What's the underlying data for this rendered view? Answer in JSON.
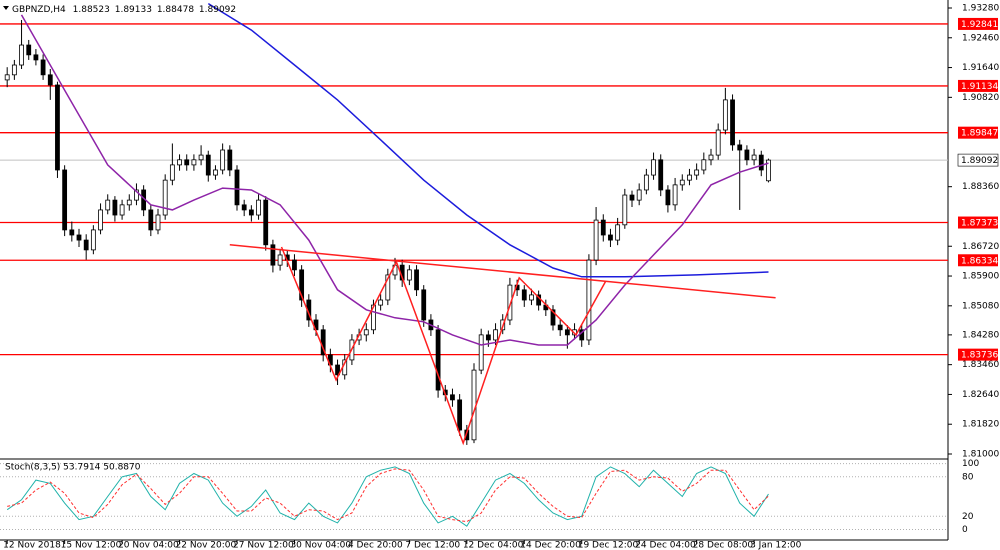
{
  "chart_data": {
    "type": "candlestick",
    "symbol": "GBPNZD,H4",
    "color_up": "#ffffff",
    "color_down": "#000000",
    "ohlc": [
      [
        1.913,
        1.9165,
        1.911,
        1.9144
      ],
      [
        1.9144,
        1.9185,
        1.913,
        1.9171
      ],
      [
        1.9171,
        1.9295,
        1.916,
        1.9226
      ],
      [
        1.9226,
        1.924,
        1.9185,
        1.9199
      ],
      [
        1.9199,
        1.9215,
        1.917,
        1.9185
      ],
      [
        1.9185,
        1.92,
        1.913,
        1.9144
      ],
      [
        1.9144,
        1.916,
        1.9075,
        1.9116
      ],
      [
        1.9116,
        1.9125,
        1.886,
        1.8882
      ],
      [
        1.8882,
        1.8895,
        1.87,
        1.8717
      ],
      [
        1.8717,
        1.874,
        1.8685,
        1.8703
      ],
      [
        1.8703,
        1.872,
        1.867,
        1.8689
      ],
      [
        1.8689,
        1.8705,
        1.8635,
        1.8662
      ],
      [
        1.8662,
        1.873,
        1.865,
        1.8717
      ],
      [
        1.8717,
        1.879,
        1.8705,
        1.8772
      ],
      [
        1.8772,
        1.8815,
        1.876,
        1.8799
      ],
      [
        1.8799,
        1.881,
        1.874,
        1.8758
      ],
      [
        1.8758,
        1.88,
        1.8745,
        1.8786
      ],
      [
        1.8786,
        1.8815,
        1.877,
        1.8799
      ],
      [
        1.8799,
        1.8845,
        1.8785,
        1.8827
      ],
      [
        1.8827,
        1.884,
        1.8755,
        1.8772
      ],
      [
        1.8772,
        1.8785,
        1.87,
        1.8717
      ],
      [
        1.8717,
        1.8775,
        1.8705,
        1.8758
      ],
      [
        1.8758,
        1.887,
        1.8745,
        1.8854
      ],
      [
        1.8854,
        1.8955,
        1.884,
        1.8896
      ],
      [
        1.8896,
        1.8925,
        1.888,
        1.891
      ],
      [
        1.891,
        1.8925,
        1.888,
        1.8896
      ],
      [
        1.8896,
        1.8925,
        1.888,
        1.891
      ],
      [
        1.891,
        1.895,
        1.8895,
        1.8923
      ],
      [
        1.8923,
        1.8935,
        1.885,
        1.8868
      ],
      [
        1.8868,
        1.8895,
        1.8855,
        1.8882
      ],
      [
        1.8882,
        1.8955,
        1.887,
        1.8937
      ],
      [
        1.8937,
        1.895,
        1.8865,
        1.8882
      ],
      [
        1.8882,
        1.8895,
        1.877,
        1.8786
      ],
      [
        1.8786,
        1.88,
        1.8755,
        1.8772
      ],
      [
        1.8772,
        1.8785,
        1.874,
        1.8758
      ],
      [
        1.8758,
        1.8815,
        1.8745,
        1.8799
      ],
      [
        1.8799,
        1.881,
        1.866,
        1.8676
      ],
      [
        1.8676,
        1.869,
        1.86,
        1.862
      ],
      [
        1.862,
        1.8665,
        1.8605,
        1.8648
      ],
      [
        1.8648,
        1.866,
        1.8615,
        1.8634
      ],
      [
        1.8634,
        1.865,
        1.859,
        1.8607
      ],
      [
        1.8607,
        1.862,
        1.8505,
        1.8524
      ],
      [
        1.8524,
        1.854,
        1.845,
        1.8469
      ],
      [
        1.8469,
        1.8485,
        1.8425,
        1.8442
      ],
      [
        1.8442,
        1.8455,
        1.8355,
        1.8373
      ],
      [
        1.8373,
        1.839,
        1.8325,
        1.8345
      ],
      [
        1.8345,
        1.836,
        1.829,
        1.8318
      ],
      [
        1.8318,
        1.8375,
        1.8305,
        1.8359
      ],
      [
        1.8359,
        1.843,
        1.8345,
        1.8414
      ],
      [
        1.8414,
        1.8445,
        1.84,
        1.8428
      ],
      [
        1.8428,
        1.846,
        1.841,
        1.8442
      ],
      [
        1.8442,
        1.8525,
        1.843,
        1.851
      ],
      [
        1.851,
        1.854,
        1.8495,
        1.8524
      ],
      [
        1.8524,
        1.861,
        1.851,
        1.8593
      ],
      [
        1.8593,
        1.864,
        1.858,
        1.862
      ],
      [
        1.862,
        1.8635,
        1.856,
        1.8579
      ],
      [
        1.8579,
        1.862,
        1.8565,
        1.8607
      ],
      [
        1.8607,
        1.862,
        1.8535,
        1.8552
      ],
      [
        1.8552,
        1.8565,
        1.845,
        1.8469
      ],
      [
        1.8469,
        1.8485,
        1.8425,
        1.8442
      ],
      [
        1.8442,
        1.8455,
        1.8255,
        1.8276
      ],
      [
        1.8276,
        1.829,
        1.8245,
        1.8263
      ],
      [
        1.8263,
        1.828,
        1.823,
        1.8249
      ],
      [
        1.8249,
        1.8265,
        1.815,
        1.8166
      ],
      [
        1.8166,
        1.818,
        1.8125,
        1.8139
      ],
      [
        1.8139,
        1.835,
        1.813,
        1.8331
      ],
      [
        1.8331,
        1.8445,
        1.832,
        1.8428
      ],
      [
        1.8428,
        1.844,
        1.8395,
        1.8414
      ],
      [
        1.8414,
        1.846,
        1.84,
        1.8442
      ],
      [
        1.8442,
        1.8485,
        1.843,
        1.8469
      ],
      [
        1.8469,
        1.8585,
        1.8455,
        1.8565
      ],
      [
        1.8565,
        1.858,
        1.8535,
        1.8552
      ],
      [
        1.8552,
        1.8565,
        1.8505,
        1.8524
      ],
      [
        1.8524,
        1.8555,
        1.851,
        1.8538
      ],
      [
        1.8538,
        1.855,
        1.8495,
        1.851
      ],
      [
        1.851,
        1.8525,
        1.848,
        1.8497
      ],
      [
        1.8497,
        1.851,
        1.844,
        1.8455
      ],
      [
        1.8455,
        1.847,
        1.8425,
        1.8442
      ],
      [
        1.8442,
        1.8455,
        1.839,
        1.8428
      ],
      [
        1.8428,
        1.846,
        1.8415,
        1.8442
      ],
      [
        1.8442,
        1.8455,
        1.8395,
        1.8414
      ],
      [
        1.8414,
        1.865,
        1.84,
        1.8634
      ],
      [
        1.8634,
        1.878,
        1.862,
        1.8744
      ],
      [
        1.8744,
        1.876,
        1.8685,
        1.8703
      ],
      [
        1.8703,
        1.872,
        1.867,
        1.8689
      ],
      [
        1.8689,
        1.875,
        1.8675,
        1.8731
      ],
      [
        1.8731,
        1.883,
        1.872,
        1.8813
      ],
      [
        1.8813,
        1.8825,
        1.878,
        1.8799
      ],
      [
        1.8799,
        1.8845,
        1.8785,
        1.8827
      ],
      [
        1.8827,
        1.8885,
        1.8815,
        1.8868
      ],
      [
        1.8868,
        1.893,
        1.8855,
        1.891
      ],
      [
        1.891,
        1.8925,
        1.881,
        1.8827
      ],
      [
        1.8827,
        1.884,
        1.8765,
        1.8786
      ],
      [
        1.8786,
        1.886,
        1.877,
        1.8841
      ],
      [
        1.8841,
        1.887,
        1.8825,
        1.8854
      ],
      [
        1.8854,
        1.8885,
        1.884,
        1.8868
      ],
      [
        1.8868,
        1.89,
        1.8855,
        1.8882
      ],
      [
        1.8882,
        1.893,
        1.887,
        1.891
      ],
      [
        1.891,
        1.894,
        1.8895,
        1.8923
      ],
      [
        1.8923,
        1.901,
        1.891,
        1.8992
      ],
      [
        1.8992,
        1.9108,
        1.898,
        1.9075
      ],
      [
        1.9075,
        1.909,
        1.8935,
        1.8951
      ],
      [
        1.8951,
        1.8965,
        1.8772,
        1.8937
      ],
      [
        1.8937,
        1.895,
        1.8895,
        1.891
      ],
      [
        1.891,
        1.894,
        1.8895,
        1.8923
      ],
      [
        1.8923,
        1.8935,
        1.8865,
        1.8882
      ],
      [
        1.88523,
        1.89133,
        1.88478,
        1.89092
      ]
    ],
    "xlim": [
      -1,
      131
    ],
    "xticks": [
      {
        "value": 0,
        "label": "12 Nov 2018"
      },
      {
        "value": 8,
        "label": "15 Nov 12:00"
      },
      {
        "value": 16,
        "label": "20 Nov 04:00"
      },
      {
        "value": 24,
        "label": "22 Nov 20:00"
      },
      {
        "value": 32,
        "label": "27 Nov 12:00"
      },
      {
        "value": 40,
        "label": "30 Nov 04:00"
      },
      {
        "value": 48,
        "label": "4 Dec 20:00"
      },
      {
        "value": 56,
        "label": "7 Dec 12:00"
      },
      {
        "value": 64,
        "label": "12 Dec 04:00"
      },
      {
        "value": 72,
        "label": "14 Dec 20:00"
      },
      {
        "value": 80,
        "label": "19 Dec 12:00"
      },
      {
        "value": 88,
        "label": "24 Dec 04:00"
      },
      {
        "value": 96,
        "label": "28 Dec 08:00"
      },
      {
        "value": 104,
        "label": "3 Jan 12:00"
      }
    ],
    "ylim": [
      1.8089,
      1.935
    ],
    "yticks": [
      {
        "value": 1.9328,
        "label": "1.93280"
      },
      {
        "value": 1.9246,
        "label": "1.92460"
      },
      {
        "value": 1.9164,
        "label": "1.91640"
      },
      {
        "value": 1.9082,
        "label": "1.90820"
      },
      {
        "value": 1.8836,
        "label": "1.88360"
      },
      {
        "value": 1.8672,
        "label": "1.86720"
      },
      {
        "value": 1.859,
        "label": "1.85900"
      },
      {
        "value": 1.8508,
        "label": "1.85080"
      },
      {
        "value": 1.8428,
        "label": "1.84280"
      },
      {
        "value": 1.8346,
        "label": "1.83460"
      },
      {
        "value": 1.8264,
        "label": "1.82640"
      },
      {
        "value": 1.8182,
        "label": "1.81820"
      },
      {
        "value": 1.81,
        "label": "1.81000"
      }
    ],
    "levels": {
      "color": "#ff0000",
      "values": [
        1.92841,
        1.91134,
        1.89847,
        1.87373,
        1.86334,
        1.83736
      ]
    },
    "last_price": 1.89092,
    "lines": [
      {
        "color": "#1c1cdc",
        "x": [
          28,
          34,
          40,
          46,
          52,
          58,
          64,
          70,
          76,
          80,
          86,
          96,
          106
        ],
        "values": [
          1.934,
          1.9267,
          1.9171,
          1.9075,
          1.8965,
          1.8854,
          1.8758,
          1.8676,
          1.8612,
          1.8588,
          1.8588,
          1.8593,
          1.8601
        ]
      },
      {
        "color": "#8e24a8",
        "x": [
          2,
          8,
          14,
          20,
          23,
          26,
          30,
          34,
          38,
          42,
          46,
          50,
          54,
          58,
          62,
          66,
          70,
          74,
          78,
          82,
          86,
          90,
          94,
          98,
          102,
          106
        ],
        "values": [
          1.9309,
          1.9102,
          1.8896,
          1.8786,
          1.8772,
          1.8799,
          1.8832,
          1.8827,
          1.8786,
          1.8689,
          1.8552,
          1.8497,
          1.8475,
          1.8464,
          1.8428,
          1.84,
          1.8414,
          1.84,
          1.84,
          1.8469,
          1.8565,
          1.8648,
          1.8731,
          1.8841,
          1.8876,
          1.8901
        ]
      },
      {
        "color": "#ff2020",
        "x": [
          31,
          107
        ],
        "values": [
          1.8676,
          1.853
        ]
      },
      {
        "color": "#ff2020",
        "x": [
          38.2,
          45.8,
          54.2,
          63.5,
          71.3,
          79.2,
          83.3
        ],
        "values": [
          1.867,
          1.8304,
          1.8629,
          1.813,
          1.8585,
          1.8428,
          1.8574
        ]
      }
    ],
    "stochastic": {
      "title": "Stoch(8,3,5) 53.7914 50.8870",
      "ylim": [
        -16,
        105.5
      ],
      "yticks": [
        100,
        80,
        20,
        0
      ],
      "x": [
        0,
        2,
        4,
        6,
        8,
        10,
        12,
        14,
        16,
        18,
        20,
        22,
        24,
        26,
        28,
        30,
        32,
        34,
        36,
        38,
        40,
        42,
        44,
        46,
        48,
        50,
        52,
        54,
        56,
        58,
        60,
        62,
        64,
        66,
        68,
        70,
        72,
        74,
        76,
        78,
        80,
        82,
        84,
        86,
        88,
        90,
        92,
        94,
        96,
        98,
        100,
        102,
        104,
        106
      ],
      "series": [
        {
          "color": "#20b2aa",
          "values": [
            30,
            45,
            75,
            70,
            40,
            15,
            20,
            50,
            80,
            85,
            50,
            30,
            70,
            85,
            75,
            40,
            20,
            35,
            60,
            25,
            15,
            40,
            20,
            10,
            40,
            80,
            90,
            95,
            85,
            40,
            10,
            20,
            5,
            40,
            75,
            85,
            70,
            45,
            25,
            15,
            20,
            80,
            95,
            85,
            65,
            90,
            70,
            50,
            85,
            95,
            85,
            40,
            20,
            53.7914
          ]
        },
        {
          "color": "#ff3030",
          "dash": true,
          "values": [
            35,
            40,
            60,
            72,
            55,
            25,
            18,
            38,
            68,
            84,
            62,
            38,
            55,
            80,
            80,
            55,
            28,
            28,
            48,
            40,
            20,
            30,
            28,
            15,
            25,
            65,
            85,
            92,
            90,
            60,
            20,
            15,
            12,
            25,
            60,
            80,
            78,
            55,
            35,
            20,
            18,
            55,
            88,
            90,
            75,
            80,
            78,
            58,
            70,
            90,
            90,
            60,
            30,
            50.887
          ]
        }
      ]
    }
  }
}
